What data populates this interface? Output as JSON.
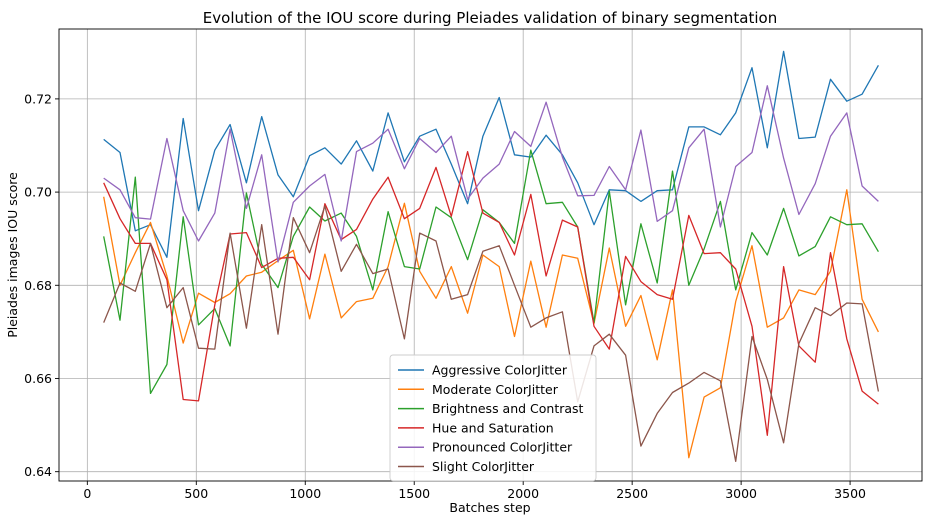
{
  "chart_data": {
    "type": "line",
    "title": "Evolution of the IOU score during Pleiades validation of binary segmentation",
    "xlabel": "Batches step",
    "ylabel": "Pleiades images IOU score",
    "xlim": [
      -130,
      3830
    ],
    "ylim": [
      0.638,
      0.735
    ],
    "xticks": [
      0,
      500,
      1000,
      1500,
      2000,
      2500,
      3000,
      3500
    ],
    "yticks": [
      0.64,
      0.66,
      0.68,
      0.7,
      0.72
    ],
    "ytick_labels": [
      "0.64",
      "0.66",
      "0.68",
      "0.70",
      "0.72"
    ],
    "grid": true,
    "legend_position": "lower-center",
    "x": [
      75,
      150,
      220,
      290,
      365,
      440,
      510,
      585,
      655,
      730,
      800,
      875,
      945,
      1020,
      1090,
      1165,
      1235,
      1310,
      1380,
      1455,
      1525,
      1600,
      1670,
      1745,
      1815,
      1890,
      1960,
      2035,
      2105,
      2180,
      2250,
      2325,
      2395,
      2470,
      2540,
      2615,
      2685,
      2760,
      2830,
      2905,
      2975,
      3050,
      3120,
      3195,
      3265,
      3340,
      3410,
      3485,
      3555,
      3630
    ],
    "series": [
      {
        "name": "Aggressive ColorJitter",
        "color": "#1f77b4",
        "values": [
          0.7113,
          0.7085,
          0.6917,
          0.693,
          0.686,
          0.7158,
          0.696,
          0.709,
          0.7145,
          0.702,
          0.7162,
          0.7037,
          0.699,
          0.7078,
          0.7095,
          0.706,
          0.711,
          0.7045,
          0.717,
          0.7065,
          0.712,
          0.7135,
          0.706,
          0.6975,
          0.712,
          0.7203,
          0.708,
          0.7075,
          0.7122,
          0.708,
          0.702,
          0.693,
          0.7005,
          0.7003,
          0.698,
          0.7003,
          0.7005,
          0.714,
          0.714,
          0.7123,
          0.717,
          0.7267,
          0.7095,
          0.7302,
          0.7115,
          0.7118,
          0.7242,
          0.7195,
          0.721,
          0.7272
        ]
      },
      {
        "name": "Moderate ColorJitter",
        "color": "#ff7f0e",
        "values": [
          0.699,
          0.68,
          0.687,
          0.6935,
          0.682,
          0.6676,
          0.6783,
          0.6763,
          0.6782,
          0.682,
          0.6828,
          0.6853,
          0.6875,
          0.6728,
          0.6867,
          0.673,
          0.6765,
          0.6772,
          0.684,
          0.6976,
          0.683,
          0.6772,
          0.684,
          0.674,
          0.6865,
          0.684,
          0.669,
          0.6852,
          0.671,
          0.6865,
          0.6858,
          0.6718,
          0.688,
          0.6712,
          0.6778,
          0.664,
          0.679,
          0.643,
          0.656,
          0.658,
          0.6765,
          0.6885,
          0.671,
          0.673,
          0.679,
          0.678,
          0.683,
          0.7005,
          0.677,
          0.67
        ]
      },
      {
        "name": "Brightness and Contrast",
        "color": "#2ca02c",
        "values": [
          0.6905,
          0.6725,
          0.7032,
          0.6568,
          0.663,
          0.6947,
          0.6715,
          0.675,
          0.667,
          0.6998,
          0.6845,
          0.6795,
          0.6905,
          0.6968,
          0.6938,
          0.6955,
          0.6905,
          0.679,
          0.6958,
          0.684,
          0.6835,
          0.6968,
          0.6945,
          0.6855,
          0.6962,
          0.6935,
          0.689,
          0.709,
          0.6975,
          0.6978,
          0.6925,
          0.672,
          0.7002,
          0.6758,
          0.6932,
          0.6805,
          0.7045,
          0.68,
          0.6878,
          0.698,
          0.679,
          0.6913,
          0.6865,
          0.6965,
          0.6863,
          0.6883,
          0.6947,
          0.693,
          0.6932,
          0.6872
        ]
      },
      {
        "name": "Hue and Saturation",
        "color": "#d62728",
        "values": [
          0.702,
          0.6943,
          0.689,
          0.689,
          0.6812,
          0.6555,
          0.6552,
          0.6758,
          0.691,
          0.6913,
          0.6838,
          0.6858,
          0.686,
          0.6812,
          0.6975,
          0.6898,
          0.692,
          0.6985,
          0.7032,
          0.6943,
          0.6965,
          0.7053,
          0.6948,
          0.7087,
          0.6955,
          0.6935,
          0.6865,
          0.6995,
          0.682,
          0.694,
          0.6925,
          0.6712,
          0.6663,
          0.6862,
          0.6808,
          0.678,
          0.677,
          0.695,
          0.6868,
          0.687,
          0.6835,
          0.6712,
          0.6478,
          0.684,
          0.667,
          0.6635,
          0.687,
          0.6685,
          0.6573,
          0.6545
        ]
      },
      {
        "name": "Pronounced ColorJitter",
        "color": "#9467bd",
        "values": [
          0.703,
          0.7005,
          0.6945,
          0.6942,
          0.7115,
          0.696,
          0.6895,
          0.6955,
          0.7135,
          0.6965,
          0.708,
          0.685,
          0.6978,
          0.7013,
          0.7038,
          0.6895,
          0.7087,
          0.7105,
          0.7135,
          0.705,
          0.7115,
          0.7085,
          0.712,
          0.6985,
          0.703,
          0.706,
          0.713,
          0.7098,
          0.7193,
          0.7075,
          0.6992,
          0.6993,
          0.7055,
          0.7005,
          0.7133,
          0.6937,
          0.696,
          0.7095,
          0.7135,
          0.6925,
          0.7055,
          0.7085,
          0.7228,
          0.7073,
          0.6952,
          0.7018,
          0.712,
          0.717,
          0.7013,
          0.698
        ]
      },
      {
        "name": "Slight ColorJitter",
        "color": "#8c564b",
        "values": [
          0.672,
          0.6805,
          0.6787,
          0.689,
          0.6752,
          0.6795,
          0.6665,
          0.6663,
          0.6912,
          0.6708,
          0.693,
          0.6695,
          0.6945,
          0.687,
          0.697,
          0.683,
          0.6888,
          0.6825,
          0.6835,
          0.6685,
          0.6912,
          0.6895,
          0.677,
          0.678,
          0.6873,
          0.6885,
          0.68,
          0.671,
          0.673,
          0.6743,
          0.655,
          0.667,
          0.6695,
          0.665,
          0.6455,
          0.6525,
          0.657,
          0.659,
          0.6613,
          0.6595,
          0.6422,
          0.669,
          0.6598,
          0.6462,
          0.6675,
          0.6752,
          0.6735,
          0.6762,
          0.676,
          0.6572
        ]
      }
    ]
  }
}
